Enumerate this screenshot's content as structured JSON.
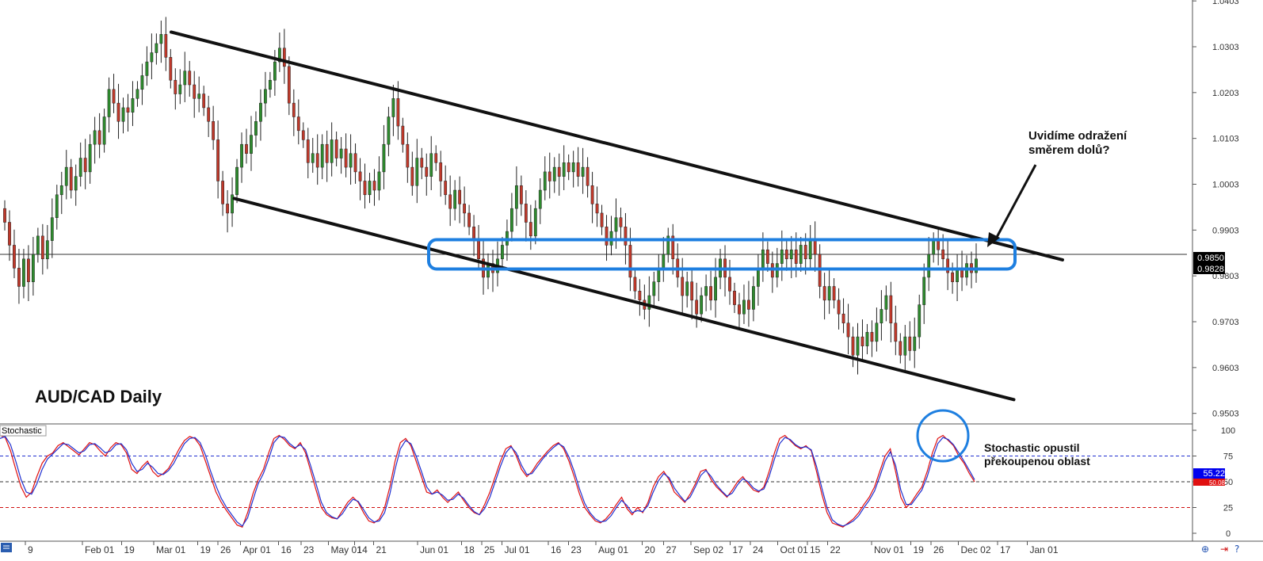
{
  "chart_data": [
    {
      "type": "candlestick",
      "title": "AUD/CAD Daily",
      "symbol": "AUD/CAD",
      "timeframe": "Daily",
      "ylim": [
        0.948,
        1.0405
      ],
      "y_ticks": [
        "1.0403",
        "1.0303",
        "1.0203",
        "1.0103",
        "1.0003",
        "0.9903",
        "0.9803",
        "0.9703",
        "0.9603",
        "0.9503"
      ],
      "y_tick_values": [
        1.0403,
        1.0303,
        1.0203,
        1.0103,
        1.0003,
        0.9903,
        0.9803,
        0.9703,
        0.9603,
        0.9503
      ],
      "x_ticks": [
        "9",
        "Feb 01",
        "19",
        "Mar 01",
        "19",
        "26",
        "Apr 01",
        "16",
        "23",
        "May 01",
        "14",
        "21",
        "Jun 01",
        "18",
        "25",
        "Jul 01",
        "16",
        "23",
        "Aug 01",
        "20",
        "27",
        "Sep 02",
        "17",
        "24",
        "Oct 01",
        "15",
        "22",
        "Nov 01",
        "19",
        "26",
        "Dec 02",
        "17",
        "Jan 01"
      ],
      "x_tick_positions": [
        0.0,
        0.048,
        0.081,
        0.108,
        0.145,
        0.162,
        0.181,
        0.213,
        0.232,
        0.255,
        0.277,
        0.293,
        0.33,
        0.367,
        0.384,
        0.401,
        0.44,
        0.457,
        0.48,
        0.519,
        0.537,
        0.56,
        0.593,
        0.61,
        0.633,
        0.658,
        0.675,
        0.712,
        0.745,
        0.762,
        0.785,
        0.818,
        0.843
      ],
      "current_price": "0.9850",
      "secondary_price": "0.9828",
      "horizontal_line": 0.985,
      "colors": {
        "bull": "#2e8b2e",
        "bear": "#c0392b",
        "box": "#1e7fe0",
        "line": "#111111"
      },
      "close": [
        0.992,
        0.987,
        0.982,
        0.978,
        0.984,
        0.979,
        0.985,
        0.989,
        0.984,
        0.988,
        0.993,
        0.998,
        1.0,
        1.004,
        0.999,
        1.002,
        1.006,
        1.003,
        1.009,
        1.012,
        1.009,
        1.015,
        1.021,
        1.018,
        1.014,
        1.017,
        1.016,
        1.019,
        1.021,
        1.024,
        1.027,
        1.029,
        1.031,
        1.033,
        1.028,
        1.023,
        1.02,
        1.022,
        1.025,
        1.022,
        1.019,
        1.02,
        1.017,
        1.014,
        1.01,
        1.001,
        0.996,
        0.994,
        0.998,
        1.004,
        1.009,
        1.007,
        1.011,
        1.014,
        1.018,
        1.021,
        1.023,
        1.027,
        1.03,
        1.026,
        1.018,
        1.015,
        1.012,
        1.01,
        1.005,
        1.007,
        1.004,
        1.009,
        1.005,
        1.01,
        1.006,
        1.008,
        1.004,
        1.007,
        1.003,
        1.001,
        0.998,
        1.001,
        0.999,
        1.003,
        1.009,
        1.015,
        1.019,
        1.013,
        1.009,
        1.004,
        1.0,
        1.006,
        1.004,
        1.002,
        1.007,
        1.005,
        1.001,
        0.998,
        0.995,
        0.999,
        0.996,
        0.994,
        0.991,
        0.988,
        0.984,
        0.98,
        0.983,
        0.981,
        0.984,
        0.987,
        0.99,
        0.995,
        1.0,
        0.996,
        0.992,
        0.989,
        0.995,
        0.999,
        1.003,
        1.001,
        1.004,
        1.002,
        1.005,
        1.003,
        1.005,
        1.002,
        1.004,
        1.0,
        0.996,
        0.994,
        0.991,
        0.987,
        0.99,
        0.993,
        0.991,
        0.987,
        0.98,
        0.977,
        0.975,
        0.973,
        0.976,
        0.979,
        0.982,
        0.985,
        0.989,
        0.984,
        0.98,
        0.976,
        0.979,
        0.975,
        0.972,
        0.976,
        0.978,
        0.975,
        0.98,
        0.984,
        0.98,
        0.977,
        0.974,
        0.972,
        0.975,
        0.973,
        0.978,
        0.982,
        0.986,
        0.983,
        0.98,
        0.983,
        0.986,
        0.984,
        0.986,
        0.983,
        0.987,
        0.984,
        0.988,
        0.985,
        0.978,
        0.975,
        0.978,
        0.975,
        0.972,
        0.97,
        0.967,
        0.963,
        0.967,
        0.965,
        0.968,
        0.966,
        0.97,
        0.973,
        0.976,
        0.97,
        0.966,
        0.963,
        0.967,
        0.964,
        0.967,
        0.974,
        0.98,
        0.985,
        0.988,
        0.986,
        0.984,
        0.981,
        0.979,
        0.982,
        0.98,
        0.983,
        0.981,
        0.984
      ],
      "trendlines": [
        {
          "name": "upper",
          "from": [
            0.144,
            1.0335
          ],
          "to": [
            0.894,
            0.9838
          ]
        },
        {
          "name": "lower",
          "from": [
            0.197,
            0.9972
          ],
          "to": [
            0.853,
            0.9533
          ]
        }
      ],
      "resistance_zone": [
        0.9818,
        0.9882
      ],
      "annotation": [
        "Uvidíme odražení",
        "směrem dolů?"
      ]
    },
    {
      "type": "line",
      "title": "Stochastic",
      "ylim": [
        0,
        100
      ],
      "y_ticks": [
        "100",
        "75",
        "50",
        "25",
        "0"
      ],
      "y_tick_values": [
        100,
        75,
        50,
        25,
        0
      ],
      "levels": [
        75,
        50,
        25
      ],
      "current_value": "55.22",
      "secondary_value": "50.08",
      "series": [
        {
          "name": "%K",
          "color": "#e01010",
          "values": [
            95,
            93,
            80,
            62,
            45,
            35,
            40,
            55,
            68,
            75,
            78,
            85,
            88,
            84,
            80,
            76,
            82,
            88,
            86,
            80,
            75,
            83,
            88,
            86,
            78,
            62,
            58,
            65,
            70,
            60,
            55,
            58,
            63,
            72,
            82,
            90,
            94,
            92,
            85,
            70,
            55,
            40,
            30,
            22,
            15,
            8,
            6,
            20,
            38,
            52,
            62,
            78,
            92,
            95,
            91,
            85,
            82,
            88,
            78,
            60,
            42,
            25,
            18,
            15,
            14,
            22,
            30,
            35,
            30,
            20,
            12,
            10,
            14,
            25,
            45,
            70,
            88,
            92,
            85,
            70,
            55,
            40,
            38,
            42,
            35,
            30,
            35,
            40,
            32,
            25,
            20,
            18,
            28,
            40,
            55,
            70,
            82,
            85,
            75,
            62,
            55,
            60,
            68,
            74,
            80,
            85,
            88,
            82,
            70,
            55,
            38,
            25,
            18,
            12,
            10,
            14,
            20,
            28,
            35,
            24,
            18,
            25,
            20,
            30,
            45,
            55,
            60,
            52,
            40,
            35,
            30,
            38,
            48,
            60,
            62,
            52,
            45,
            40,
            35,
            42,
            50,
            55,
            48,
            42,
            40,
            45,
            60,
            78,
            92,
            95,
            90,
            85,
            82,
            85,
            80,
            60,
            38,
            20,
            10,
            8,
            6,
            10,
            14,
            20,
            28,
            35,
            45,
            60,
            75,
            82,
            60,
            35,
            25,
            30,
            38,
            45,
            60,
            78,
            92,
            95,
            90,
            85,
            75,
            68,
            58,
            50
          ]
        },
        {
          "name": "%D",
          "color": "#2030d0",
          "values": [
            92,
            94,
            86,
            70,
            52,
            40,
            38,
            48,
            62,
            72,
            77,
            82,
            87,
            86,
            82,
            78,
            80,
            86,
            87,
            83,
            78,
            80,
            86,
            87,
            81,
            68,
            60,
            62,
            68,
            64,
            58,
            57,
            61,
            68,
            78,
            87,
            92,
            93,
            88,
            76,
            60,
            46,
            34,
            25,
            18,
            11,
            7,
            15,
            32,
            48,
            58,
            72,
            88,
            94,
            93,
            87,
            83,
            86,
            81,
            65,
            48,
            30,
            20,
            16,
            14,
            19,
            27,
            33,
            31,
            23,
            15,
            11,
            12,
            20,
            38,
            62,
            82,
            90,
            87,
            75,
            60,
            45,
            38,
            40,
            37,
            32,
            33,
            38,
            34,
            27,
            21,
            18,
            24,
            35,
            50,
            65,
            78,
            84,
            78,
            66,
            57,
            58,
            65,
            72,
            78,
            83,
            87,
            84,
            74,
            60,
            43,
            29,
            20,
            14,
            11,
            12,
            17,
            25,
            32,
            27,
            20,
            22,
            21,
            27,
            40,
            51,
            58,
            54,
            44,
            37,
            31,
            35,
            45,
            56,
            61,
            55,
            47,
            41,
            36,
            39,
            47,
            53,
            50,
            44,
            41,
            43,
            55,
            72,
            87,
            93,
            91,
            86,
            83,
            84,
            81,
            65,
            44,
            25,
            13,
            9,
            7,
            9,
            12,
            17,
            25,
            32,
            41,
            55,
            70,
            79,
            66,
            42,
            28,
            28,
            35,
            42,
            55,
            72,
            87,
            93,
            91,
            86,
            78,
            70,
            61,
            52
          ]
        }
      ],
      "highlight": "circle",
      "annotation": [
        "Stochastic opustil",
        "překoupenou oblast"
      ]
    }
  ]
}
